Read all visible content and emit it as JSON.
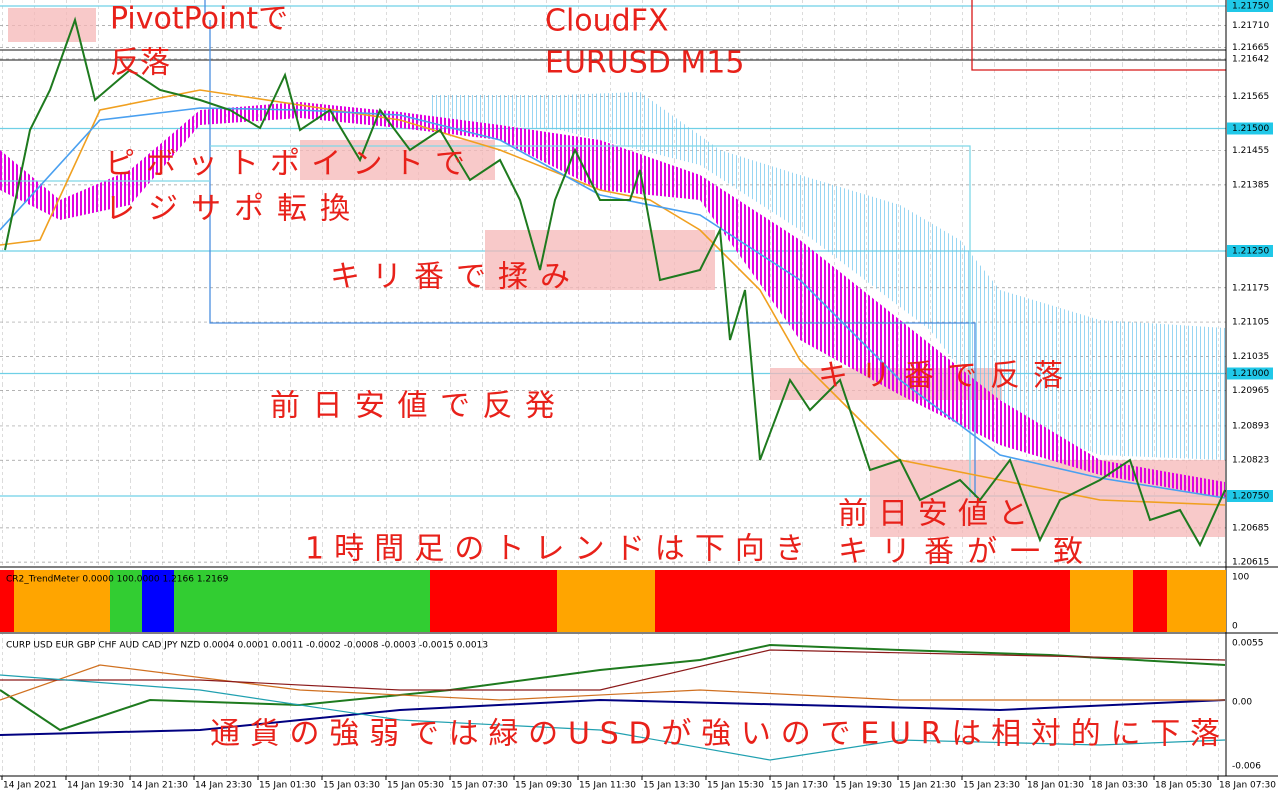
{
  "annotations": [
    "PivotPointで",
    "反落",
    "CloudFX",
    "EURUSD M15",
    "ピボットポイントで",
    "レジサポ転換",
    "キリ番で揉み",
    "前日安値で反発",
    "キリ番で反落",
    "前日安値と",
    "キリ番が一致",
    "1時間足のトレンドは下向き",
    "通貨の強弱では緑のUSDが強いのでEURは相対的に下落"
  ],
  "price_labels": [
    "1.21750",
    "1.21710",
    "1.21665",
    "1.21642",
    "1.21565",
    "1.21500",
    "1.21455",
    "1.21385",
    "1.21250",
    "1.21175",
    "1.21105",
    "1.21035",
    "1.21000",
    "1.20965",
    "1.20893",
    "1.20823",
    "1.20750",
    "1.20685",
    "1.20615"
  ],
  "highlighted_price_labels": [
    "1.21750",
    "1.21500",
    "1.21250",
    "1.21000",
    "1.20750"
  ],
  "time_labels": [
    "14 Jan 2021",
    "14 Jan 19:30",
    "14 Jan 21:30",
    "14 Jan 23:30",
    "15 Jan 01:30",
    "15 Jan 03:30",
    "15 Jan 05:30",
    "15 Jan 07:30",
    "15 Jan 09:30",
    "15 Jan 11:30",
    "15 Jan 13:30",
    "15 Jan 15:30",
    "15 Jan 17:30",
    "15 Jan 19:30",
    "15 Jan 21:30",
    "15 Jan 23:30",
    "18 Jan 01:30",
    "18 Jan 03:30",
    "18 Jan 05:30",
    "18 Jan 07:30"
  ],
  "trend_meter": {
    "label": "CR2_TrendMeter 0.0000 100.0000 1.2166 1.2169",
    "scale": [
      "100",
      "0"
    ]
  },
  "currency_meter": {
    "label": "CURP USD EUR GBP CHF AUD CAD JPY NZD 0.0004 0.0001 0.0011 -0.0002 -0.0008 -0.0003 -0.0015 0.0013",
    "scale": [
      "0.0055",
      "0.00",
      "-0.006"
    ]
  }
}
